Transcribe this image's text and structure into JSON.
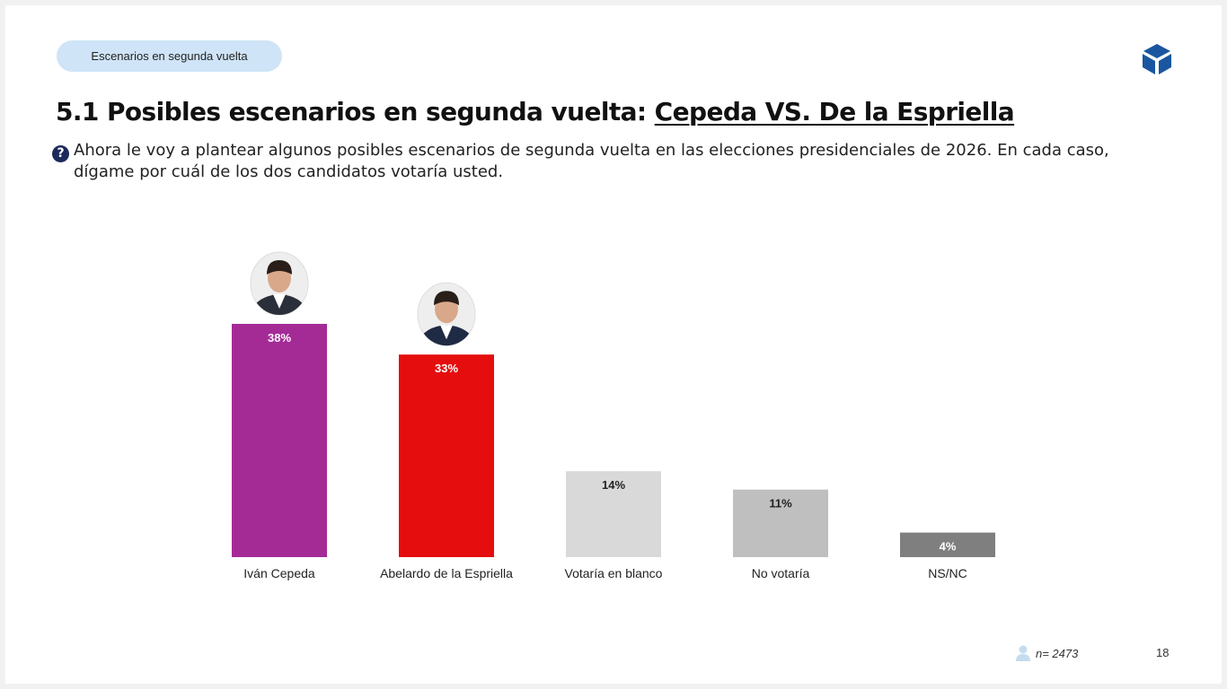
{
  "section_pill": "Escenarios en segunda vuelta",
  "title": {
    "prefix": "5.1 Posibles escenarios en segunda vuelta: ",
    "highlight": "Cepeda VS. De la Espriella"
  },
  "question": "Ahora le voy a plantear algunos posibles escenarios de segunda vuelta en las elecciones presidenciales de 2026. En cada caso, dígame por cuál de los dos candidatos votaría usted.",
  "icons": {
    "question": "question-circle-icon",
    "logo": "cube-logo-icon",
    "sample": "person-icon"
  },
  "footer": {
    "sample_size": "n= 2473",
    "page_number": "18"
  },
  "chart_data": {
    "type": "bar",
    "categories": [
      "Iván Cepeda",
      "Abelardo de la Espriella",
      "Votaría en blanco",
      "No votaría",
      "NS/NC"
    ],
    "values": [
      38,
      33,
      14,
      11,
      4
    ],
    "data_labels": [
      "38%",
      "33%",
      "14%",
      "11%",
      "4%"
    ],
    "colors": [
      "#a42b96",
      "#e50d0d",
      "#d9d9d9",
      "#bfbfbf",
      "#7f7f7f"
    ],
    "label_colors": [
      "#ffffff",
      "#ffffff",
      "#222222",
      "#222222",
      "#ffffff"
    ],
    "candidate_photos": [
      "Iván Cepeda",
      "Abelardo de la Espriella"
    ],
    "ylim": [
      0,
      40
    ],
    "grid": false,
    "axes_visible": false
  }
}
